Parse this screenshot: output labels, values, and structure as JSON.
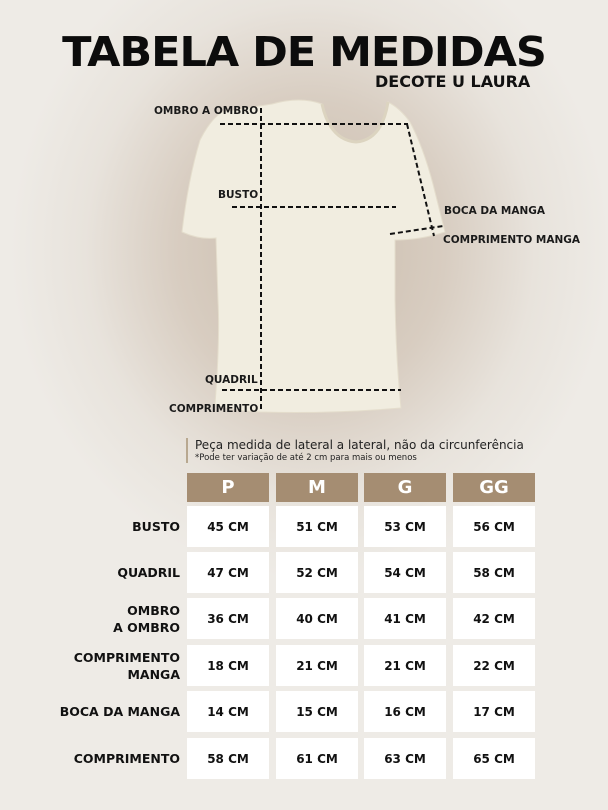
{
  "header": {
    "title": "TABELA DE MEDIDAS",
    "subtitle": "DECOTE U LAURA"
  },
  "diagram_labels": {
    "ombro": "OMBRO A OMBRO",
    "busto": "BUSTO",
    "boca_manga": "BOCA DA MANGA",
    "comprimento_manga": "COMPRIMENTO MANGA",
    "quadril": "QUADRIL",
    "comprimento": "COMPRIMENTO"
  },
  "note": {
    "line1": "Peça medida de lateral a lateral, não da circunferência",
    "line2": "*Pode ter variação de até 2 cm para mais ou menos"
  },
  "colors": {
    "header_bg": "#a58d72",
    "cell_bg": "#ffffff"
  },
  "table": {
    "sizes": [
      "P",
      "M",
      "G",
      "GG"
    ],
    "rows": [
      {
        "label": "BUSTO",
        "values": [
          "45 CM",
          "51 CM",
          "53 CM",
          "56 CM"
        ]
      },
      {
        "label": "QUADRIL",
        "values": [
          "47 CM",
          "52 CM",
          "54 CM",
          "58 CM"
        ]
      },
      {
        "label": "OMBRO\nA OMBRO",
        "values": [
          "36 CM",
          "40 CM",
          "41 CM",
          "42 CM"
        ]
      },
      {
        "label": "COMPRIMENTO\nMANGA",
        "values": [
          "18 CM",
          "21 CM",
          "21 CM",
          "22 CM"
        ]
      },
      {
        "label": "BOCA DA MANGA",
        "values": [
          "14 CM",
          "15 CM",
          "16 CM",
          "17 CM"
        ]
      },
      {
        "label": "COMPRIMENTO",
        "values": [
          "58 CM",
          "61 CM",
          "63 CM",
          "65 CM"
        ]
      }
    ]
  }
}
